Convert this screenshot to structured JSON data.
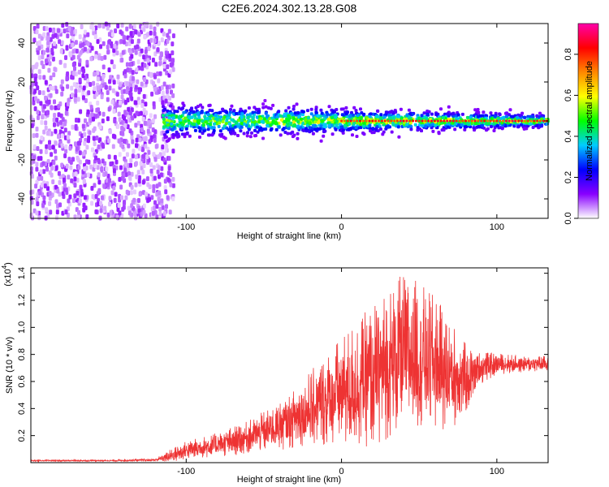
{
  "title": "C2E6.2024.302.13.28.G08",
  "colors": {
    "axis": "#000000",
    "snr_line": "#ee3333"
  },
  "chart_data": [
    {
      "type": "heatmap",
      "xlabel": "Height of straight line (km)",
      "ylabel": "Frequency (Hz)",
      "xlim": [
        -200,
        133
      ],
      "ylim": [
        -50,
        50
      ],
      "xticks": [
        -100,
        0,
        100
      ],
      "xtick_labels": [
        "-100",
        "0",
        "100"
      ],
      "yticks": [
        -40,
        -20,
        0,
        20,
        40
      ],
      "ytick_labels": [
        "-40",
        "-20",
        "0",
        "20",
        "40"
      ],
      "grid": false,
      "colorbar": {
        "label": "Normalized spectral amplitude",
        "range": [
          0,
          0.95
        ],
        "ticks": [
          0.0,
          0.2,
          0.4,
          0.6,
          0.8
        ],
        "tick_labels": [
          "0.0",
          "0.2",
          "0.4",
          "0.6",
          "0.8"
        ],
        "colormap": [
          "#ffffff",
          "#8800ff",
          "#0000ff",
          "#00ccff",
          "#00ff00",
          "#ffff00",
          "#ff8800",
          "#ff0000",
          "#ff00aa"
        ]
      },
      "regions": [
        {
          "name": "noise",
          "x": [
            -200,
            -108
          ],
          "freq": [
            -50,
            50
          ],
          "amplitude": 0.05
        },
        {
          "name": "signal band",
          "x": [
            -115,
            133
          ],
          "freq": [
            -5,
            5
          ],
          "amplitude": 0.4
        },
        {
          "name": "carrier line",
          "x": [
            0,
            133
          ],
          "freq": [
            0,
            0
          ],
          "amplitude": 0.85
        }
      ]
    },
    {
      "type": "line",
      "xlabel": "Height of straight line (km)",
      "ylabel": "SNR (10 * v/v)",
      "y_multiplier": "(x10",
      "y_multiplier_exp": "4",
      "xlim": [
        -200,
        133
      ],
      "ylim": [
        0,
        14400
      ],
      "xticks": [
        -100,
        0,
        100
      ],
      "xtick_labels": [
        "-100",
        "0",
        "100"
      ],
      "yticks": [
        2000,
        4000,
        6000,
        8000,
        10000,
        12000,
        14000
      ],
      "ytick_labels": [
        "0.2",
        "0.4",
        "0.6",
        "0.8",
        "1.0",
        "1.2",
        "1.4"
      ],
      "grid": false,
      "series": [
        {
          "color": "#ee3333",
          "x": [
            -200,
            -150,
            -120,
            -110,
            -100,
            -90,
            -80,
            -70,
            -60,
            -50,
            -40,
            -30,
            -20,
            -10,
            0,
            10,
            20,
            30,
            40,
            50,
            60,
            70,
            80,
            90,
            100,
            110,
            120,
            133
          ],
          "y": [
            150,
            150,
            200,
            500,
            900,
            1100,
            1300,
            1600,
            1900,
            2300,
            2700,
            3300,
            4000,
            4600,
            5200,
            5800,
            6400,
            7300,
            8000,
            7900,
            7300,
            6500,
            6200,
            7000,
            7300,
            7300,
            7300,
            7300
          ],
          "spread": [
            50,
            50,
            100,
            500,
            700,
            800,
            900,
            1100,
            1200,
            1500,
            1800,
            2200,
            2800,
            3400,
            4200,
            4800,
            5200,
            5600,
            6000,
            5500,
            5000,
            4200,
            2600,
            1200,
            800,
            700,
            600,
            600
          ]
        }
      ]
    }
  ]
}
